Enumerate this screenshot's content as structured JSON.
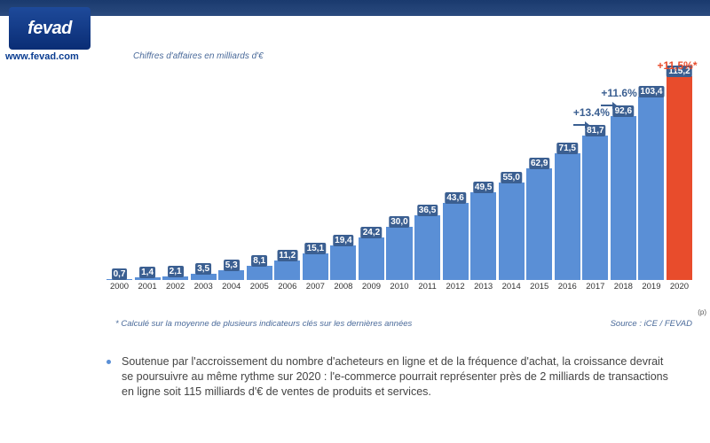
{
  "logo": {
    "text": "fevad"
  },
  "site_url": "www.fevad.com",
  "chart": {
    "subtitle": "Chiffres d'affaires en milliards d'€",
    "type": "bar",
    "ylim_max": 120,
    "years": [
      2000,
      2001,
      2002,
      2003,
      2004,
      2005,
      2006,
      2007,
      2008,
      2009,
      2010,
      2011,
      2012,
      2013,
      2014,
      2015,
      2016,
      2017,
      2018,
      2019,
      2020
    ],
    "values": [
      0.7,
      1.4,
      2.1,
      3.5,
      5.3,
      8.1,
      11.2,
      15.1,
      19.4,
      24.2,
      30.0,
      36.5,
      43.6,
      49.5,
      55.0,
      62.9,
      71.5,
      81.7,
      92.6,
      103.4,
      115.2
    ],
    "labels": [
      "0,7",
      "1,4",
      "2,1",
      "3,5",
      "5,3",
      "8,1",
      "11,2",
      "15,1",
      "19,4",
      "24,2",
      "30,0",
      "36,5",
      "43,6",
      "49,5",
      "55,0",
      "62,9",
      "71,5",
      "81,7",
      "92,6",
      "103,4",
      "115,2"
    ],
    "bar_color_default": "#5a8fd6",
    "bar_color_highlight": "#e84c2c",
    "highlight_index": 20,
    "value_label_bg": "#3b5f91",
    "value_label_bg_highlight": "#3b5f91",
    "background_color": "#ffffff",
    "growth_annotations": [
      {
        "text": "+13.4%",
        "over_index": 17,
        "color": "#3b5f91",
        "arrow": true
      },
      {
        "text": "+11.6%",
        "over_index": 18,
        "color": "#3b5f91",
        "arrow": true
      },
      {
        "text": "+11,5%*",
        "over_index": 20,
        "color": "#e84c2c",
        "arrow": false
      }
    ],
    "footnote": "* Calculé sur la moyenne de plusieurs indicateurs clés sur les dernières années",
    "source": "Source : iCE / FEVAD",
    "projection_note": "(p)"
  },
  "body": {
    "bullet_text": "Soutenue par l'accroissement du nombre d'acheteurs en ligne et de la fréquence d'achat, la croissance devrait se poursuivre au même rythme sur 2020 : l'e-commerce pourrait représenter près de 2 milliards de transactions en ligne soit 115 milliards d'€ de ventes de produits et services."
  }
}
